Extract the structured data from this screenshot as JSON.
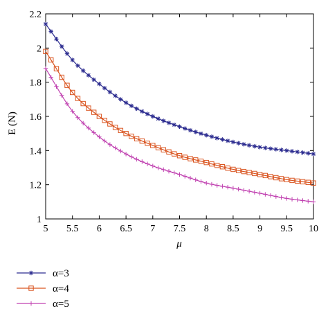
{
  "chart_data": {
    "type": "line",
    "title": "",
    "xlabel": "μ",
    "ylabel": "E (N)",
    "xlim": [
      5,
      10
    ],
    "ylim": [
      1,
      2.2
    ],
    "xticks": [
      5,
      5.5,
      6,
      6.5,
      7,
      7.5,
      8,
      8.5,
      9,
      9.5,
      10
    ],
    "xtick_labels": [
      "5",
      "5.5",
      "6",
      "6.5",
      "7",
      "7.5",
      "8",
      "8.5",
      "9",
      "9.5",
      "10"
    ],
    "yticks": [
      1,
      1.2,
      1.4,
      1.6,
      1.8,
      2,
      2.2
    ],
    "ytick_labels": [
      "1",
      "1.2",
      "1.4",
      "1.6",
      "1.8",
      "2",
      "2.2"
    ],
    "grid": false,
    "legend_position": "below plot, left",
    "x": [
      5,
      5.5,
      6,
      6.5,
      7,
      7.5,
      8,
      8.5,
      9,
      9.5,
      10
    ],
    "series": [
      {
        "name": "α=3",
        "color": "#2b2b8f",
        "marker": "asterisk",
        "values": [
          2.14,
          1.93,
          1.79,
          1.68,
          1.6,
          1.54,
          1.49,
          1.45,
          1.42,
          1.4,
          1.38
        ]
      },
      {
        "name": "α=4",
        "color": "#d9531e",
        "marker": "square",
        "values": [
          1.98,
          1.74,
          1.6,
          1.5,
          1.43,
          1.37,
          1.33,
          1.29,
          1.26,
          1.23,
          1.21
        ]
      },
      {
        "name": "α=5",
        "color": "#c040b0",
        "marker": "plus",
        "values": [
          1.88,
          1.63,
          1.48,
          1.38,
          1.31,
          1.26,
          1.21,
          1.18,
          1.15,
          1.12,
          1.1
        ]
      }
    ]
  }
}
